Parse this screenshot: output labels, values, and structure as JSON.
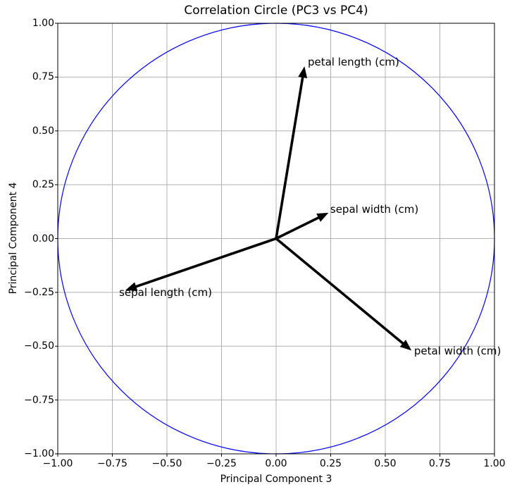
{
  "chart_data": {
    "type": "scatter",
    "subtype": "correlation_circle",
    "title": "Correlation Circle (PC3 vs PC4)",
    "xlabel": "Principal Component 3",
    "ylabel": "Principal Component 4",
    "xlim": [
      -1.0,
      1.0
    ],
    "ylim": [
      -1.0,
      1.0
    ],
    "grid": true,
    "legend": false,
    "xticks": {
      "values": [
        -1.0,
        -0.75,
        -0.5,
        -0.25,
        0.0,
        0.25,
        0.5,
        0.75,
        1.0
      ],
      "labels": [
        "−1.00",
        "−0.75",
        "−0.50",
        "−0.25",
        "0.00",
        "0.25",
        "0.50",
        "0.75",
        "1.00"
      ]
    },
    "yticks": {
      "values": [
        -1.0,
        -0.75,
        -0.5,
        -0.25,
        0.0,
        0.25,
        0.5,
        0.75,
        1.0
      ],
      "labels": [
        "−1.00",
        "−0.75",
        "−0.50",
        "−0.25",
        "0.00",
        "0.25",
        "0.50",
        "0.75",
        "1.00"
      ]
    },
    "circle": {
      "radius": 1.0,
      "color": "#0000ff"
    },
    "colors": {
      "arrow": "#000000",
      "grid": "#b0b0b0",
      "axes": "#000000",
      "text": "#000000",
      "background": "#ffffff"
    },
    "vectors": [
      {
        "label": "petal length (cm)",
        "x": 0.13,
        "y": 0.8,
        "label_x": 0.145,
        "label_y": 0.82
      },
      {
        "label": "sepal width (cm)",
        "x": 0.24,
        "y": 0.12,
        "label_x": 0.248,
        "label_y": 0.136
      },
      {
        "label": "sepal length (cm)",
        "x": -0.69,
        "y": -0.24,
        "label_x": -0.719,
        "label_y": -0.25
      },
      {
        "label": "petal width (cm)",
        "x": 0.62,
        "y": -0.52,
        "label_x": 0.632,
        "label_y": -0.522
      }
    ]
  }
}
